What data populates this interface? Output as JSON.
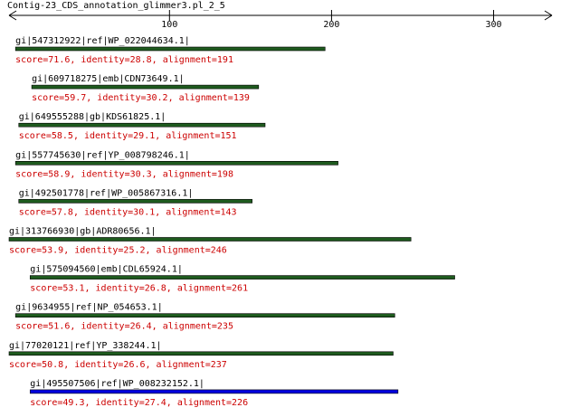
{
  "chart_data": {
    "type": "alignment",
    "title": "Contig-23_CDS_annotation_glimmer3.pl_2_5",
    "xlim": [
      1,
      336
    ],
    "xticks": [
      100,
      200,
      300
    ],
    "hits": [
      {
        "name": "gi|547312922|ref|WP_022044634.1|",
        "label": "score=71.6, identity=28.8, alignment=191",
        "start": 5,
        "end": 196,
        "color": "#1e5a1e"
      },
      {
        "name": "gi|609718275|emb|CDN73649.1|",
        "label": "score=59.7, identity=30.2, alignment=139",
        "start": 15,
        "end": 155,
        "color": "#1e5a1e"
      },
      {
        "name": "gi|649555288|gb|KDS61825.1|",
        "label": "score=58.5, identity=29.1, alignment=151",
        "start": 7,
        "end": 159,
        "color": "#1e5a1e"
      },
      {
        "name": "gi|557745630|ref|YP_008798246.1|",
        "label": "score=58.9, identity=30.3, alignment=198",
        "start": 5,
        "end": 204,
        "color": "#1e5a1e"
      },
      {
        "name": "gi|492501778|ref|WP_005867316.1|",
        "label": "score=57.8, identity=30.1, alignment=143",
        "start": 7,
        "end": 151,
        "color": "#1e5a1e"
      },
      {
        "name": "gi|313766930|gb|ADR80656.1|",
        "label": "score=53.9, identity=25.2, alignment=246",
        "start": 1,
        "end": 249,
        "color": "#1e5a1e"
      },
      {
        "name": "gi|575094560|emb|CDL65924.1|",
        "label": "score=53.1, identity=26.8, alignment=261",
        "start": 14,
        "end": 276,
        "color": "#1e5a1e"
      },
      {
        "name": "gi|9634955|ref|NP_054653.1|",
        "label": "score=51.6, identity=26.4, alignment=235",
        "start": 5,
        "end": 239,
        "color": "#1e5a1e"
      },
      {
        "name": "gi|77020121|ref|YP_338244.1|",
        "label": "score=50.8, identity=26.6, alignment=237",
        "start": 1,
        "end": 238,
        "color": "#1e5a1e"
      },
      {
        "name": "gi|495507506|ref|WP_008232152.1|",
        "label": "score=49.3, identity=27.4, alignment=226",
        "start": 14,
        "end": 241,
        "color": "#0000e0"
      }
    ]
  }
}
